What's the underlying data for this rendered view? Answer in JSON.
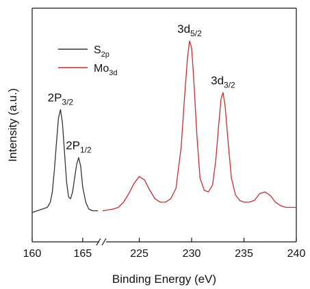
{
  "chart_data": {
    "type": "line",
    "title": "",
    "xlabel": "Binding Energy (eV)",
    "ylabel": "Intensity (a.u.)",
    "broken_x_axis": true,
    "y_ticks_shown": false,
    "grid": false,
    "legend_position": "top-left",
    "axis_segments": [
      {
        "xlim": [
          160,
          166.5
        ],
        "ticks": [
          "160",
          "165"
        ]
      },
      {
        "xlim": [
          221.5,
          240
        ],
        "ticks": [
          "225",
          "230",
          "235",
          "240"
        ]
      }
    ],
    "series": [
      {
        "name": "S_{2p}",
        "color": "#333333",
        "segment": 0,
        "x": [
          160.0,
          160.5,
          161.0,
          161.5,
          161.8,
          162.0,
          162.2,
          162.4,
          162.6,
          162.8,
          163.0,
          163.2,
          163.4,
          163.6,
          163.8,
          164.0,
          164.2,
          164.4,
          164.6,
          164.8,
          165.0,
          165.3,
          165.6,
          166.0,
          166.5
        ],
        "y": [
          0.0,
          0.01,
          0.02,
          0.03,
          0.06,
          0.12,
          0.25,
          0.4,
          0.55,
          0.6,
          0.52,
          0.35,
          0.18,
          0.09,
          0.08,
          0.12,
          0.2,
          0.28,
          0.32,
          0.27,
          0.15,
          0.06,
          0.02,
          0.01,
          0.01
        ]
      },
      {
        "name": "Mo_{3d}",
        "color": "#cc2a2a",
        "segment": 1,
        "x": [
          221.5,
          222.5,
          223.0,
          223.5,
          224.0,
          224.5,
          225.0,
          225.5,
          226.0,
          226.5,
          227.0,
          227.5,
          228.0,
          228.5,
          229.0,
          229.3,
          229.6,
          229.8,
          230.0,
          230.2,
          230.5,
          230.8,
          231.2,
          231.6,
          232.0,
          232.3,
          232.6,
          232.8,
          233.0,
          233.2,
          233.5,
          233.8,
          234.2,
          234.6,
          235.0,
          235.5,
          236.0,
          236.5,
          237.0,
          237.5,
          238.0,
          238.5,
          239.0,
          240.0
        ],
        "y": [
          0.01,
          0.02,
          0.03,
          0.06,
          0.11,
          0.17,
          0.21,
          0.19,
          0.13,
          0.08,
          0.06,
          0.06,
          0.08,
          0.14,
          0.38,
          0.65,
          0.9,
          1.0,
          0.96,
          0.78,
          0.45,
          0.2,
          0.13,
          0.12,
          0.16,
          0.3,
          0.52,
          0.66,
          0.7,
          0.62,
          0.4,
          0.2,
          0.1,
          0.07,
          0.06,
          0.06,
          0.07,
          0.11,
          0.12,
          0.1,
          0.06,
          0.04,
          0.03,
          0.03
        ]
      }
    ],
    "legend": [
      {
        "text": "S",
        "sub": "2p",
        "color": "#333333"
      },
      {
        "text": "Mo",
        "sub": "3d",
        "color": "#cc2a2a"
      }
    ],
    "annotations": [
      {
        "text": "2P",
        "sub": "3/2",
        "x": 162.8,
        "y": 0.6,
        "segment": 0
      },
      {
        "text": "2P",
        "sub": "1/2",
        "x": 164.6,
        "y": 0.32,
        "segment": 0
      },
      {
        "text": "3d",
        "sub": "5/2",
        "x": 229.8,
        "y": 1.0,
        "segment": 1
      },
      {
        "text": "3d",
        "sub": "3/2",
        "x": 233.0,
        "y": 0.7,
        "segment": 1
      }
    ]
  }
}
